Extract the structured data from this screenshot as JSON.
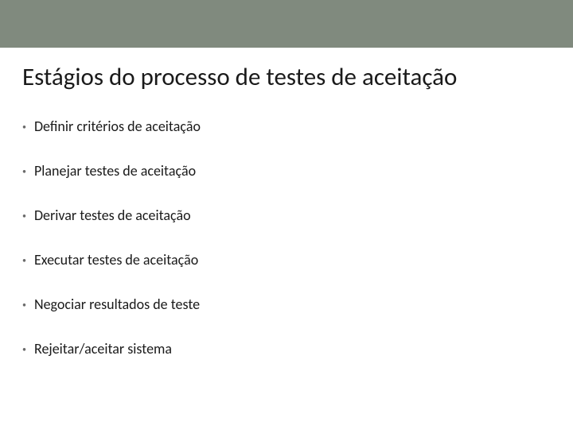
{
  "slide": {
    "title": "Estágios do processo de testes de aceitação",
    "bullets": [
      {
        "text": "Definir critérios de aceitação"
      },
      {
        "text": "Planejar testes de aceitação"
      },
      {
        "text": "Derivar testes de aceitação"
      },
      {
        "text": "Executar testes de aceitação"
      },
      {
        "text": "Negociar resultados de teste"
      },
      {
        "text": "Rejeitar/aceitar sistema"
      }
    ],
    "styling": {
      "top_bar_color": "#808a7e",
      "background_color": "#ffffff",
      "title_fontsize": 31,
      "title_color": "#1a1a1a",
      "bullet_fontsize": 18,
      "bullet_color": "#1a1a1a",
      "bullet_dot_color": "#6a6a6a",
      "bullet_spacing": 34,
      "font_family": "Calibri"
    }
  }
}
